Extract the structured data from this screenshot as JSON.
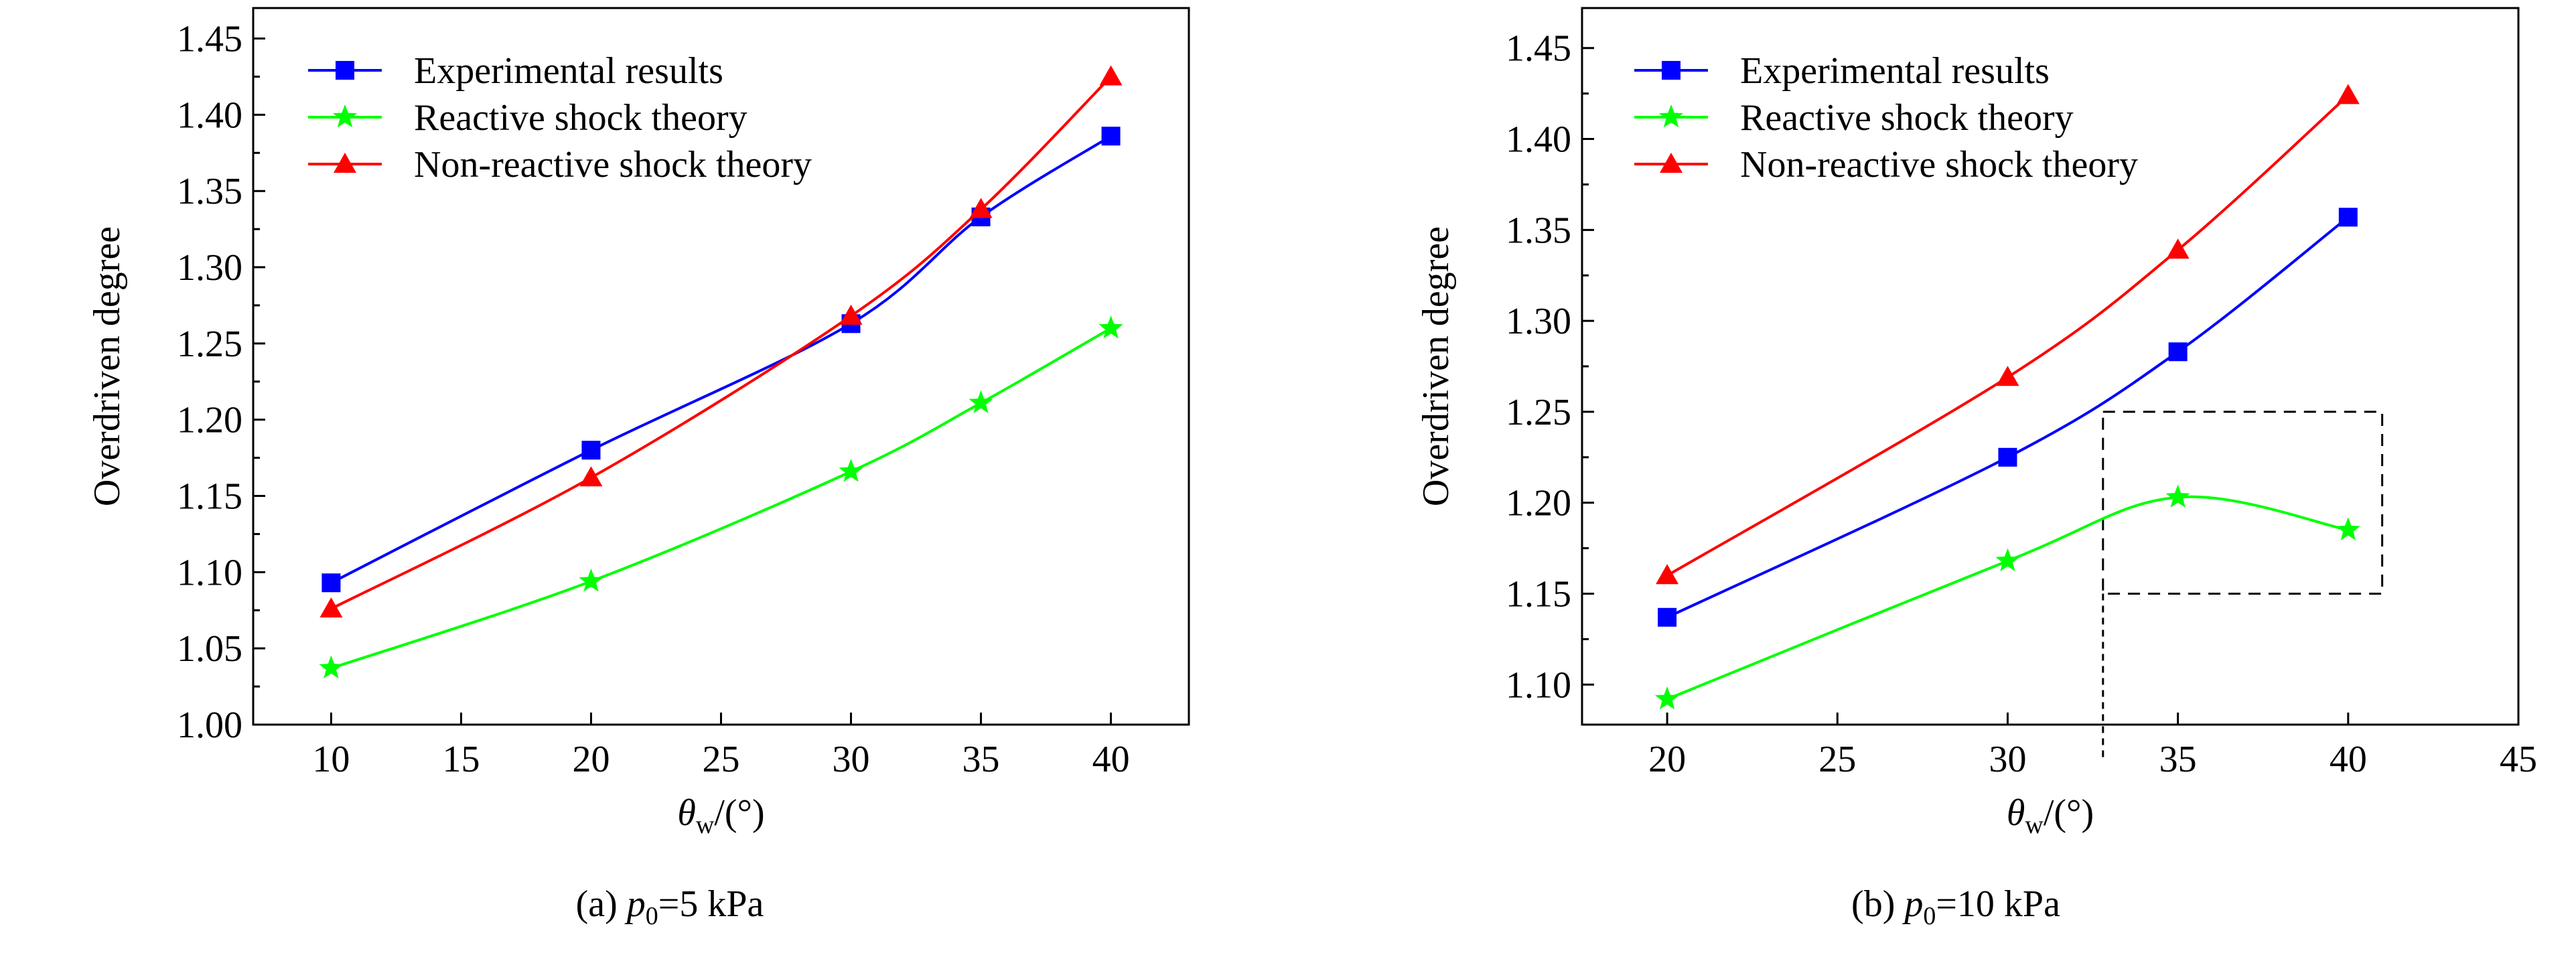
{
  "colors": {
    "experimental": "#0000ff",
    "reactive": "#00ff00",
    "non_reactive": "#ff0000",
    "axis": "#000000"
  },
  "captions": {
    "a": {
      "prefix": "(a) ",
      "var": "p",
      "sub": "0",
      "suffix": "=5 kPa"
    },
    "b": {
      "prefix": "(b) ",
      "var": "p",
      "sub": "0",
      "suffix": "=10 kPa"
    }
  },
  "chart_data": [
    {
      "id": "a",
      "type": "line",
      "title": "",
      "xlabel": {
        "symbol": "θ",
        "sub": "w",
        "rest": "/(°)"
      },
      "ylabel": "Overdriven degree",
      "xlim": [
        7,
        43
      ],
      "ylim": [
        1.0,
        1.47
      ],
      "xticks": [
        "10",
        "15",
        "20",
        "25",
        "30",
        "35",
        "40"
      ],
      "xtick_values": [
        10,
        15,
        20,
        25,
        30,
        35,
        40
      ],
      "yticks": [
        "1.00",
        "1.05",
        "1.10",
        "1.15",
        "1.20",
        "1.25",
        "1.30",
        "1.35",
        "1.40",
        "1.45"
      ],
      "ytick_values": [
        1.0,
        1.05,
        1.1,
        1.15,
        1.2,
        1.25,
        1.3,
        1.35,
        1.4,
        1.45
      ],
      "legend_position": "top-left",
      "x": [
        10,
        20,
        30,
        35,
        40
      ],
      "series": [
        {
          "name": "Experimental results",
          "marker": "square",
          "color_key": "experimental",
          "values": [
            1.093,
            1.18,
            1.263,
            1.333,
            1.386
          ]
        },
        {
          "name": "Reactive shock theory",
          "marker": "star",
          "color_key": "reactive",
          "values": [
            1.037,
            1.094,
            1.166,
            1.211,
            1.26
          ]
        },
        {
          "name": "Non-reactive shock theory",
          "marker": "triangle",
          "color_key": "non_reactive",
          "values": [
            1.076,
            1.162,
            1.268,
            1.338,
            1.425
          ]
        }
      ]
    },
    {
      "id": "b",
      "type": "line",
      "title": "",
      "xlabel": {
        "symbol": "θ",
        "sub": "w",
        "rest": "/(°)"
      },
      "ylabel": "Overdriven degree",
      "xlim": [
        17.5,
        45
      ],
      "ylim": [
        1.078,
        1.472
      ],
      "xticks": [
        "20",
        "25",
        "30",
        "35",
        "40",
        "45"
      ],
      "xtick_values": [
        20,
        25,
        30,
        35,
        40,
        45
      ],
      "yticks": [
        "1.10",
        "1.15",
        "1.20",
        "1.25",
        "1.30",
        "1.35",
        "1.40",
        "1.45"
      ],
      "ytick_values": [
        1.1,
        1.15,
        1.2,
        1.25,
        1.3,
        1.35,
        1.4,
        1.45
      ],
      "legend_position": "top-left",
      "x": [
        20,
        30,
        35,
        40
      ],
      "series": [
        {
          "name": "Experimental results",
          "marker": "square",
          "color_key": "experimental",
          "values": [
            1.137,
            1.225,
            1.283,
            1.357
          ]
        },
        {
          "name": "Reactive shock theory",
          "marker": "star",
          "color_key": "reactive",
          "values": [
            1.092,
            1.168,
            1.203,
            1.185
          ]
        },
        {
          "name": "Non-reactive shock theory",
          "marker": "triangle",
          "color_key": "non_reactive",
          "values": [
            1.16,
            1.269,
            1.339,
            1.424
          ]
        }
      ],
      "annotation_box": {
        "x0": 32.8,
        "x1": 41.0,
        "y0": 1.15,
        "y1": 1.25,
        "style": "dashed"
      }
    }
  ]
}
